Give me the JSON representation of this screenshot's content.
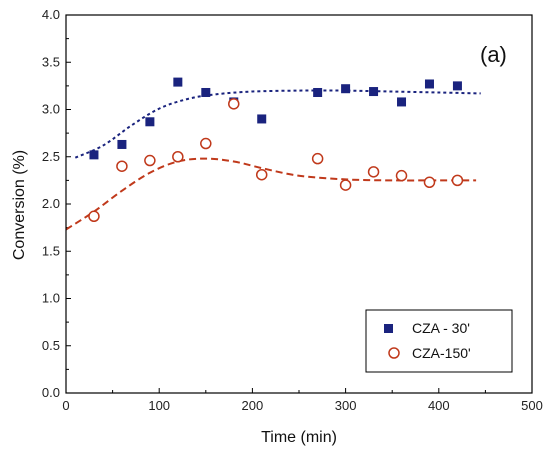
{
  "chart_data": {
    "type": "scatter",
    "panel_label": "(a)",
    "xlabel": "Time (min)",
    "ylabel": "Conversion (%)",
    "xlim": [
      0,
      500
    ],
    "ylim": [
      0.0,
      4.0
    ],
    "x_ticks": [
      0,
      100,
      200,
      300,
      400,
      500
    ],
    "y_ticks": [
      "0.0",
      "0.5",
      "1.0",
      "1.5",
      "2.0",
      "2.5",
      "3.0",
      "3.5",
      "4.0"
    ],
    "legend_position": "bottom-right",
    "grid": false,
    "series": [
      {
        "name": "CZA - 30'",
        "marker": "square-filled",
        "color": "#1a237e",
        "x": [
          30,
          60,
          90,
          120,
          150,
          180,
          210,
          270,
          300,
          330,
          360,
          390,
          420
        ],
        "y": [
          2.52,
          2.63,
          2.87,
          3.29,
          3.18,
          3.08,
          2.9,
          3.18,
          3.22,
          3.19,
          3.08,
          3.27,
          3.25
        ],
        "trend": {
          "style": "dotted",
          "x": [
            10,
            40,
            70,
            100,
            130,
            160,
            200,
            250,
            300,
            350,
            400,
            445
          ],
          "y": [
            2.49,
            2.62,
            2.83,
            3.01,
            3.11,
            3.16,
            3.19,
            3.2,
            3.2,
            3.19,
            3.18,
            3.17
          ]
        }
      },
      {
        "name": "CZA-150'",
        "marker": "circle-open",
        "color": "#c0391b",
        "x": [
          30,
          60,
          90,
          120,
          150,
          180,
          210,
          270,
          300,
          330,
          360,
          390,
          420
        ],
        "y": [
          1.87,
          2.4,
          2.46,
          2.5,
          2.64,
          3.06,
          2.31,
          2.48,
          2.2,
          2.34,
          2.3,
          2.23,
          2.25
        ],
        "trend": {
          "style": "dashed",
          "x": [
            0,
            30,
            60,
            90,
            120,
            150,
            180,
            210,
            250,
            300,
            350,
            400,
            440
          ],
          "y": [
            1.73,
            1.92,
            2.14,
            2.33,
            2.45,
            2.48,
            2.45,
            2.38,
            2.3,
            2.26,
            2.25,
            2.25,
            2.25
          ]
        }
      }
    ]
  }
}
